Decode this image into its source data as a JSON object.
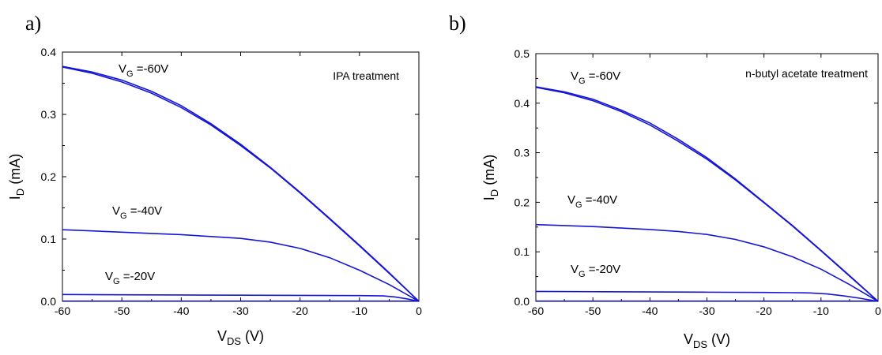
{
  "chart_data": [
    {
      "type": "line",
      "panel_label": "a)",
      "annotation": "IPA treatment",
      "xlabel": {
        "main": "V",
        "sub": "DS",
        "unit": " (V)"
      },
      "ylabel": {
        "main": "I",
        "sub": "D",
        "unit": " (mA)"
      },
      "xlim": [
        -60,
        0
      ],
      "ylim": [
        0,
        0.4
      ],
      "xticks": [
        -60,
        -50,
        -40,
        -30,
        -20,
        -10,
        0
      ],
      "yticks": [
        0.0,
        0.1,
        0.2,
        0.3,
        0.4
      ],
      "ytick_labels": [
        "0.0",
        "0.1",
        "0.2",
        "0.3",
        "0.4"
      ],
      "grid": false,
      "line_color": "#1515d6",
      "series": [
        {
          "curve_label": {
            "main": "V",
            "sub": "G",
            "value": " =-60V"
          },
          "x": [
            -60,
            -55,
            -50,
            -45,
            -40,
            -35,
            -30,
            -25,
            -20,
            -15,
            -10,
            -5,
            0
          ],
          "y": [
            0.377,
            0.368,
            0.355,
            0.337,
            0.314,
            0.285,
            0.252,
            0.215,
            0.175,
            0.133,
            0.09,
            0.046,
            0.0
          ],
          "y_sweep2": [
            0.376,
            0.366,
            0.352,
            0.334,
            0.311,
            0.283,
            0.25,
            0.214,
            0.174,
            0.132,
            0.089,
            0.045,
            0.0
          ]
        },
        {
          "curve_label": {
            "main": "V",
            "sub": "G",
            "value": " =-40V"
          },
          "x": [
            -60,
            -55,
            -50,
            -45,
            -40,
            -35,
            -30,
            -25,
            -20,
            -15,
            -10,
            -5,
            0
          ],
          "y": [
            0.115,
            0.113,
            0.111,
            0.109,
            0.107,
            0.104,
            0.101,
            0.095,
            0.085,
            0.07,
            0.05,
            0.027,
            0.0
          ]
        },
        {
          "curve_label": {
            "main": "V",
            "sub": "G",
            "value": " =-20V"
          },
          "x": [
            -60,
            -50,
            -40,
            -30,
            -20,
            -10,
            -6,
            -4,
            -2,
            0
          ],
          "y": [
            0.011,
            0.0105,
            0.0102,
            0.0099,
            0.0096,
            0.0093,
            0.0088,
            0.007,
            0.004,
            0.0
          ]
        }
      ]
    },
    {
      "type": "line",
      "panel_label": "b)",
      "annotation": "n-butyl acetate treatment",
      "xlabel": {
        "main": "V",
        "sub": "DS",
        "unit": " (V)"
      },
      "ylabel": {
        "main": "I",
        "sub": "D",
        "unit": " (mA)"
      },
      "xlim": [
        -60,
        0
      ],
      "ylim": [
        0,
        0.5
      ],
      "xticks": [
        -60,
        -50,
        -40,
        -30,
        -20,
        -10,
        0
      ],
      "yticks": [
        0.0,
        0.1,
        0.2,
        0.3,
        0.4,
        0.5
      ],
      "ytick_labels": [
        "0.0",
        "0.1",
        "0.2",
        "0.3",
        "0.4",
        "0.5"
      ],
      "grid": false,
      "line_color": "#1515d6",
      "series": [
        {
          "curve_label": {
            "main": "V",
            "sub": "G",
            "value": " =-60V"
          },
          "x": [
            -60,
            -55,
            -50,
            -45,
            -40,
            -35,
            -30,
            -25,
            -20,
            -15,
            -10,
            -5,
            0
          ],
          "y": [
            0.433,
            0.423,
            0.408,
            0.386,
            0.36,
            0.327,
            0.29,
            0.247,
            0.2,
            0.153,
            0.103,
            0.052,
            0.0
          ],
          "y_sweep2": [
            0.432,
            0.421,
            0.405,
            0.383,
            0.356,
            0.323,
            0.287,
            0.245,
            0.199,
            0.152,
            0.102,
            0.051,
            0.0
          ]
        },
        {
          "curve_label": {
            "main": "V",
            "sub": "G",
            "value": " =-40V"
          },
          "x": [
            -60,
            -55,
            -50,
            -45,
            -40,
            -35,
            -30,
            -25,
            -20,
            -15,
            -10,
            -5,
            0
          ],
          "y": [
            0.155,
            0.153,
            0.151,
            0.148,
            0.145,
            0.141,
            0.135,
            0.125,
            0.11,
            0.09,
            0.065,
            0.034,
            0.0
          ]
        },
        {
          "curve_label": {
            "main": "V",
            "sub": "G",
            "value": " =-20V"
          },
          "x": [
            -60,
            -50,
            -40,
            -30,
            -20,
            -15,
            -12,
            -9,
            -6,
            -3,
            0
          ],
          "y": [
            0.02,
            0.0195,
            0.019,
            0.0185,
            0.018,
            0.0175,
            0.017,
            0.015,
            0.011,
            0.006,
            0.0
          ]
        }
      ]
    }
  ]
}
